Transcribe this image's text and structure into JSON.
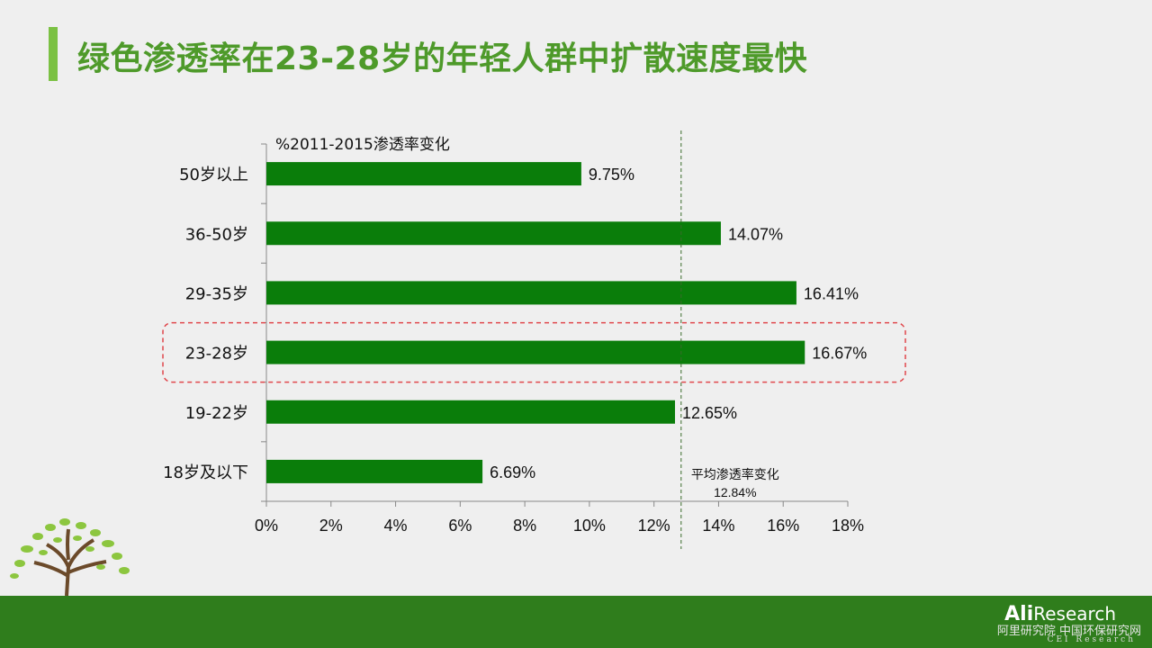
{
  "slide": {
    "title": "绿色渗透率在23-28岁的年轻人群中扩散速度最快"
  },
  "chart_data": {
    "type": "bar",
    "orientation": "horizontal",
    "series_title": "%2011-2015渗透率变化",
    "categories": [
      "50岁以上",
      "36-50岁",
      "29-35岁",
      "23-28岁",
      "19-22岁",
      "18岁及以下"
    ],
    "values": [
      9.75,
      14.07,
      16.41,
      16.67,
      12.65,
      6.69
    ],
    "value_labels": [
      "9.75%",
      "14.07%",
      "16.41%",
      "16.67%",
      "12.65%",
      "6.69%"
    ],
    "xlim": [
      0,
      18
    ],
    "xticks": [
      0,
      2,
      4,
      6,
      8,
      10,
      12,
      14,
      16,
      18
    ],
    "xtick_labels": [
      "0%",
      "2%",
      "4%",
      "6%",
      "8%",
      "10%",
      "12%",
      "14%",
      "16%",
      "18%"
    ],
    "bar_color": "#0a7d0a",
    "highlight_category": "23-28岁",
    "highlight_color": "#e0474c",
    "average": {
      "value": 12.84,
      "label": "平均渗透率变化",
      "value_label": "12.84%"
    },
    "grid": false
  },
  "branding": {
    "logo_main_bold": "Ali",
    "logo_main_light": "Research",
    "logo_sub": "阿里研究院 中国环保研究网",
    "logo_sub2": "CEI Research",
    "footer_color": "#2f7d1c"
  }
}
